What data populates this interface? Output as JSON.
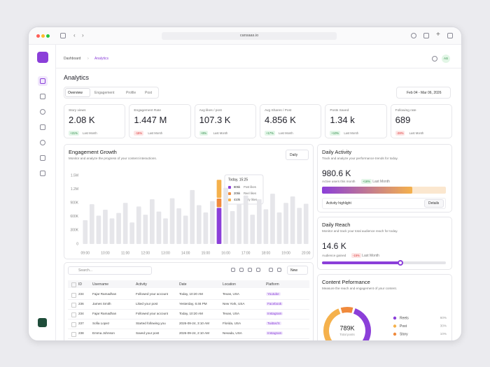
{
  "browser": {
    "url": "cansaas.io"
  },
  "breadcrumb": [
    "Dashboard",
    "Analytics"
  ],
  "avatar": "AS",
  "page_title": "Analytics",
  "tabs": [
    "Overview",
    "Engagement",
    "Profile",
    "Post"
  ],
  "date_range": "Feb 04 - Mar 06, 2026",
  "stats": [
    {
      "label": "Story views",
      "value": "2.08 K",
      "change": "+21%",
      "period": "Last Month"
    },
    {
      "label": "Engagement Rate",
      "value": "1.447 M",
      "change": "-15%",
      "period": "Last Month"
    },
    {
      "label": "Avg likes / post",
      "value": "107.3 K",
      "change": "+8%",
      "period": "Last Month"
    },
    {
      "label": "Avg Shares / Post",
      "value": "4.856 K",
      "change": "+17%",
      "period": "Last Month"
    },
    {
      "label": "Posts Saved",
      "value": "1.34 k",
      "change": "+10%",
      "period": "Last Month"
    },
    {
      "label": "Following rate",
      "value": "689",
      "change": "-28%",
      "period": "Last Month"
    }
  ],
  "engagement": {
    "title": "Engagement Growth",
    "subtitle": "Monitor and analyze the progress of your content interactions.",
    "filter": "Daily"
  },
  "chart_data": [
    {
      "type": "bar",
      "color": "#e6e6ea",
      "categories": [
        "09:00",
        null,
        null,
        "10:00",
        null,
        null,
        "11:00",
        null,
        null,
        "12:00",
        null,
        null,
        "13:00",
        null,
        null,
        "14:00",
        null,
        null,
        "15:00",
        null,
        null,
        "16:00",
        null,
        null,
        "17:00",
        null,
        null,
        "18:00",
        null,
        null,
        "19:00",
        null,
        null,
        "20:00"
      ],
      "values": [
        520000,
        870000,
        620000,
        750000,
        560000,
        680000,
        900000,
        470000,
        820000,
        640000,
        980000,
        710000,
        560000,
        1000000,
        780000,
        620000,
        1180000,
        850000,
        690000,
        940000,
        null,
        1230000,
        720000,
        870000,
        1060000,
        640000,
        980000,
        760000,
        1100000,
        690000,
        900000,
        1040000,
        790000,
        880000
      ],
      "series": [
        {
          "name": "Post likes",
          "color": "#8b3fd9",
          "values": [
            null,
            null,
            null,
            null,
            null,
            null,
            null,
            null,
            null,
            null,
            null,
            null,
            null,
            null,
            null,
            null,
            null,
            null,
            null,
            null,
            805000,
            null,
            null,
            null,
            null,
            null,
            null,
            null,
            null,
            null,
            null,
            null,
            null,
            null
          ],
          "value_labels": [
            null,
            null,
            null,
            null,
            null,
            null,
            null,
            null,
            null,
            null,
            null,
            null,
            null,
            null,
            null,
            null,
            null,
            null,
            null,
            null,
            "805k",
            null,
            null,
            null,
            null,
            null,
            null,
            null,
            null,
            null,
            null,
            null,
            null,
            null
          ]
        },
        {
          "name": "Reel likes",
          "color": "#f08a3c",
          "values": [
            null,
            null,
            null,
            null,
            null,
            null,
            null,
            null,
            null,
            null,
            null,
            null,
            null,
            null,
            null,
            null,
            null,
            null,
            null,
            null,
            205000,
            null,
            null,
            null,
            null,
            null,
            null,
            null,
            null,
            null,
            null,
            null,
            null,
            null
          ],
          "value_labels": [
            null,
            null,
            null,
            null,
            null,
            null,
            null,
            null,
            null,
            null,
            null,
            null,
            null,
            null,
            null,
            null,
            null,
            null,
            null,
            null,
            "205k",
            null,
            null,
            null,
            null,
            null,
            null,
            null,
            null,
            null,
            null,
            null,
            null,
            null
          ]
        },
        {
          "name": "Story likes",
          "color": "#f5b14c",
          "values": [
            null,
            null,
            null,
            null,
            null,
            null,
            null,
            null,
            null,
            null,
            null,
            null,
            null,
            null,
            null,
            null,
            null,
            null,
            null,
            null,
            410000,
            null,
            null,
            null,
            null,
            null,
            null,
            null,
            null,
            null,
            null,
            null,
            null,
            null
          ],
          "value_labels": [
            null,
            null,
            null,
            null,
            null,
            null,
            null,
            null,
            null,
            null,
            null,
            null,
            null,
            null,
            null,
            null,
            null,
            null,
            null,
            null,
            "410k",
            null,
            null,
            null,
            null,
            null,
            null,
            null,
            null,
            null,
            null,
            null,
            null,
            null
          ]
        }
      ],
      "tooltip": "Today, 15:25",
      "ylim": [
        0,
        1500000
      ],
      "yticks": [
        0,
        {
          "value": 300000,
          "label": "300K"
        },
        {
          "value": 600000,
          "label": "600K"
        },
        {
          "value": 900000,
          "label": "900K"
        },
        {
          "value": 1200000,
          "label": "1.2M"
        },
        {
          "value": 1500000,
          "label": "1.5M"
        }
      ],
      "grid": false
    },
    {
      "type": "pie",
      "center_value": "789K",
      "center_label": "Total posts",
      "categories": [
        "Reels",
        "Post",
        "Story"
      ],
      "values": [
        60,
        30,
        10
      ],
      "value_labels": [
        "60%",
        "30%",
        "10%"
      ],
      "colors": [
        "#8b3fd9",
        "#f5b14c",
        "#f08a3c"
      ]
    }
  ],
  "table": {
    "search": "Search...",
    "new_button": "New",
    "columns": [
      "ID",
      "Username",
      "Activity",
      "Date",
      "Location",
      "Platform"
    ],
    "rows": [
      [
        "234",
        "Fajar Ramadhan",
        "Followed your account",
        "Today, 10:20 AM",
        "Texas, USA",
        "Youtube"
      ],
      [
        "236",
        "James Smith",
        "Liked your post",
        "Yesterday, 6:46 PM",
        "New York, USA",
        "Facebook"
      ],
      [
        "234",
        "Fajar Ramadhan",
        "Followed your account",
        "Today, 10:20 AM",
        "Texas, USA",
        "Instagram"
      ],
      [
        "237",
        "Sofia Lopez",
        "Started following you",
        "2026-09-24, 3:10 AM",
        "Florida, USA",
        "Twitter/X"
      ],
      [
        "238",
        "Emma Johnson",
        "Saved your post",
        "2026-09-24, 2:10 AM",
        "Nevada, USA",
        "Instagram"
      ]
    ]
  },
  "daily_activity": {
    "title": "Daily Activity",
    "subtitle": "Track and analyze your performance trends for today.",
    "value": "980.6 K",
    "caption": "Active users this month",
    "change": "+16%",
    "period": "Last Month",
    "progress": 73,
    "highlight": "Activity highlight",
    "button": "Details"
  },
  "daily_reach": {
    "title": "Daily Reach",
    "subtitle": "Monitor and track your total audience reach for today.",
    "value": "14.6 K",
    "caption": "Audience gained",
    "change": "-15%",
    "period": "Last Month",
    "progress": 63
  },
  "content_performance": {
    "title": "Content Peformance",
    "subtitle": "Measure the reach and engagement of your content."
  }
}
